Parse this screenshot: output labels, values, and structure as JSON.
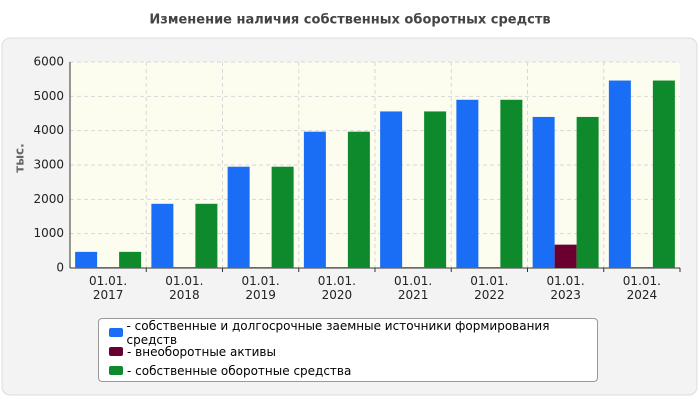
{
  "chart_data": {
    "type": "bar",
    "title": "Изменение наличия собственных оборотных средств",
    "ylabel": "тыс.",
    "categories": [
      "01.01.\n2017",
      "01.01.\n2018",
      "01.01.\n2019",
      "01.01.\n2020",
      "01.01.\n2021",
      "01.01.\n2022",
      "01.01.\n2023",
      "01.01.\n2024"
    ],
    "series": [
      {
        "name": "- собственные и долгосрочные заемные источники формирования средств",
        "color": "#1a6ef5",
        "values": [
          470,
          1870,
          2950,
          3970,
          4560,
          4900,
          4400,
          5460
        ]
      },
      {
        "name": "- внеоборотные активы",
        "color": "#6b0030",
        "values": [
          20,
          20,
          20,
          20,
          20,
          20,
          680,
          20
        ]
      },
      {
        "name": "- собственные оборотные средства",
        "color": "#0e8a2c",
        "values": [
          470,
          1870,
          2950,
          3970,
          4560,
          4900,
          4400,
          5460
        ]
      }
    ],
    "ylim": [
      0,
      6000
    ],
    "yticks": [
      0,
      1000,
      2000,
      3000,
      4000,
      5000,
      6000
    ],
    "grid": true,
    "legend": "bottom"
  }
}
